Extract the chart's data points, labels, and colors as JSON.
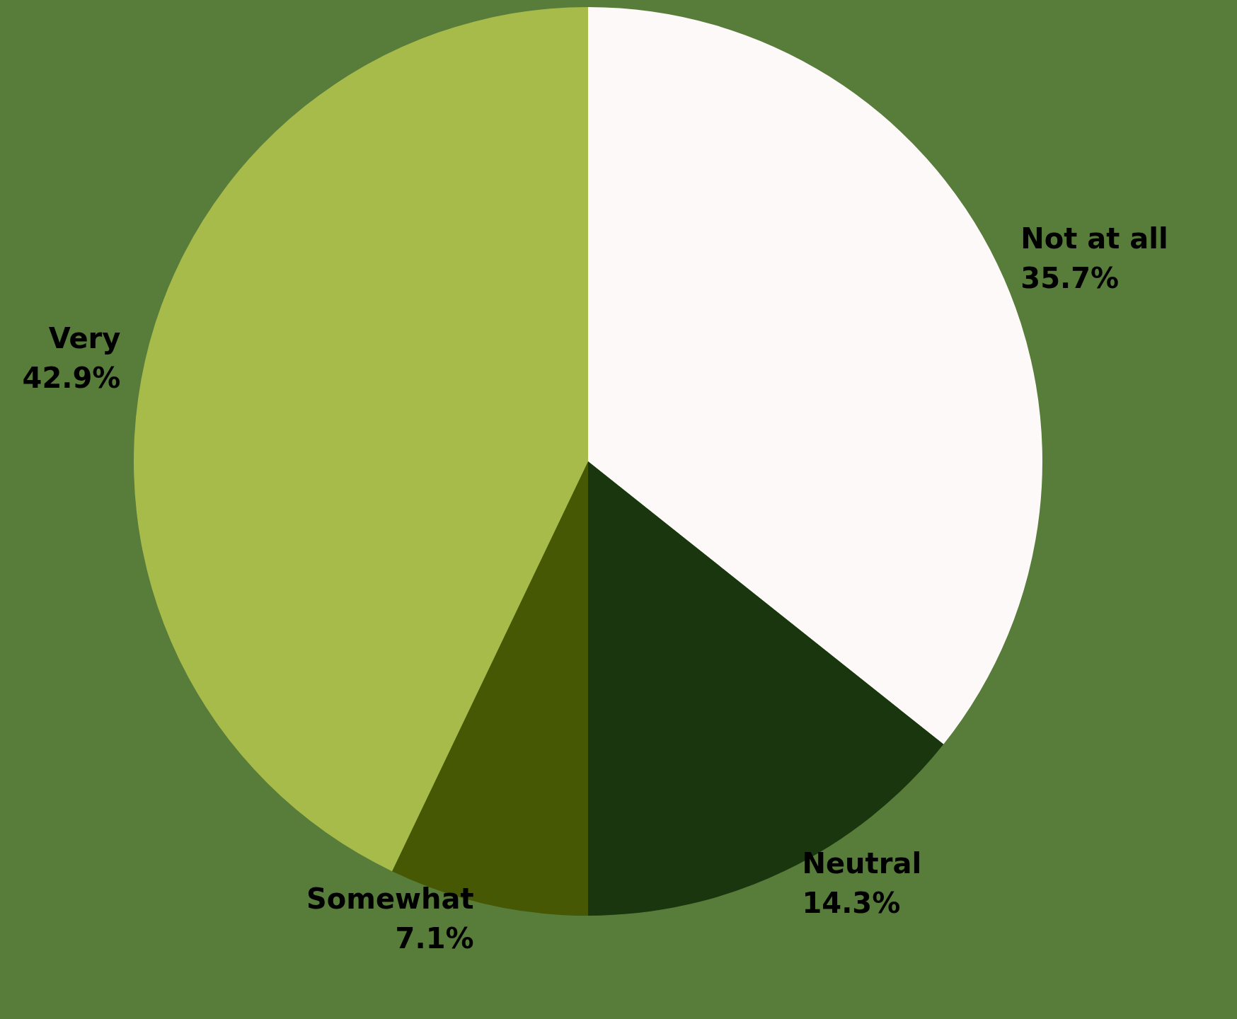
{
  "chart_data": {
    "type": "pie",
    "categories": [
      "Not at all",
      "Neutral",
      "Somewhat",
      "Very"
    ],
    "values": [
      35.7,
      14.3,
      7.1,
      42.9
    ],
    "colors": [
      "#fdf9f8",
      "#1a360f",
      "#465804",
      "#a7bb4a"
    ],
    "value_labels": [
      "35.7%",
      "14.3%",
      "7.1%",
      "42.9%"
    ],
    "legend": false
  }
}
